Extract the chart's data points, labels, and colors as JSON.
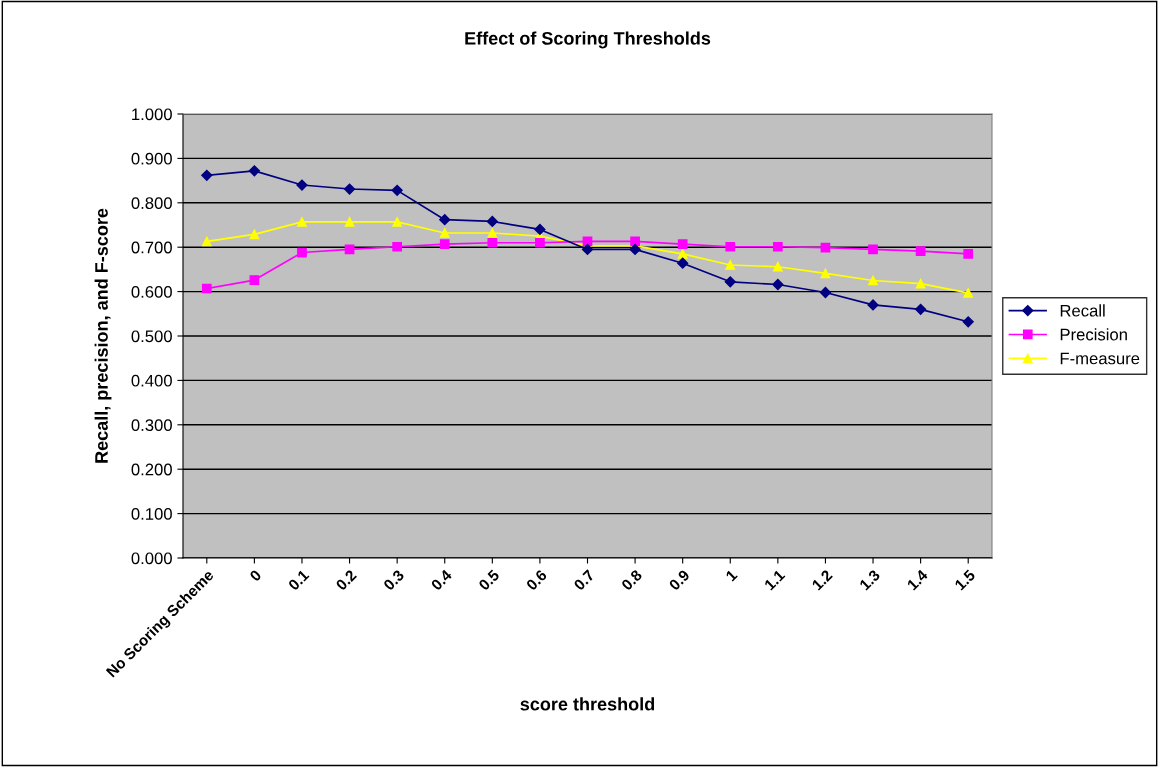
{
  "chart_data": {
    "type": "line",
    "title": "Effect of Scoring Thresholds",
    "xlabel": "score threshold",
    "ylabel": "Recall, precision, and F-score",
    "categories": [
      "No Scoring Scheme",
      "0",
      "0.1",
      "0.2",
      "0.3",
      "0.4",
      "0.5",
      "0.6",
      "0.7",
      "0.8",
      "0.9",
      "1",
      "1.1",
      "1.2",
      "1.3",
      "1.4",
      "1.5"
    ],
    "series": [
      {
        "name": "Recall",
        "color": "#000080",
        "marker": "diamond",
        "values": [
          0.862,
          0.872,
          0.84,
          0.831,
          0.828,
          0.762,
          0.758,
          0.74,
          0.695,
          0.695,
          0.664,
          0.622,
          0.616,
          0.598,
          0.57,
          0.56,
          0.532
        ]
      },
      {
        "name": "Precision",
        "color": "#ff00ff",
        "marker": "square",
        "values": [
          0.607,
          0.626,
          0.688,
          0.695,
          0.701,
          0.707,
          0.71,
          0.71,
          0.713,
          0.713,
          0.707,
          0.701,
          0.701,
          0.699,
          0.695,
          0.691,
          0.685
        ]
      },
      {
        "name": "F-measure",
        "color": "#ffff00",
        "marker": "triangle",
        "values": [
          0.713,
          0.729,
          0.757,
          0.757,
          0.757,
          0.732,
          0.732,
          0.725,
          0.703,
          0.703,
          0.685,
          0.66,
          0.656,
          0.641,
          0.625,
          0.618,
          0.597
        ]
      }
    ],
    "ylim": [
      0,
      1
    ],
    "yticks": [
      {
        "value": 0,
        "label": "0.000"
      },
      {
        "value": 0.1,
        "label": "0.100"
      },
      {
        "value": 0.2,
        "label": "0.200"
      },
      {
        "value": 0.3,
        "label": "0.300"
      },
      {
        "value": 0.4,
        "label": "0.400"
      },
      {
        "value": 0.5,
        "label": "0.500"
      },
      {
        "value": 0.6,
        "label": "0.600"
      },
      {
        "value": 0.7,
        "label": "0.700"
      },
      {
        "value": 0.8,
        "label": "0.800"
      },
      {
        "value": 0.9,
        "label": "0.900"
      },
      {
        "value": 1,
        "label": "1.000"
      }
    ],
    "grid": "y",
    "legend": "right",
    "line_style": "solid"
  }
}
